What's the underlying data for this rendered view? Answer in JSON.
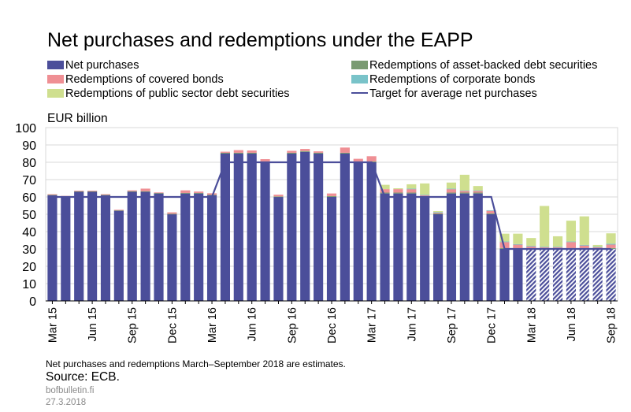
{
  "header": {
    "title": "Net purchases and redemptions under the EAPP",
    "unit_label": "EUR billion"
  },
  "footer": {
    "note": "Net purchases and redemptions March–September 2018 are estimates.",
    "source": "Source: ECB.",
    "site": "bofbulletin.fi",
    "date": "27.3.2018"
  },
  "colors": {
    "net_purchases": "#4b4e9a",
    "covered_bonds": "#ef8f94",
    "abs": "#7a9b72",
    "corporate": "#79c3c9",
    "public_sector": "#cfdf8f",
    "target": "#4b4e9a",
    "grid": "#d9d9d9"
  },
  "chart_data": {
    "type": "bar",
    "stacked": true,
    "ylim": [
      0,
      100
    ],
    "yticks": [
      0,
      10,
      20,
      30,
      40,
      50,
      60,
      70,
      80,
      90,
      100
    ],
    "ylabel": "EUR billion",
    "grid": true,
    "estimate_from_index": 36,
    "categories": [
      "Mar 15",
      "Apr 15",
      "May 15",
      "Jun 15",
      "Jul 15",
      "Aug 15",
      "Sep 15",
      "Oct 15",
      "Nov 15",
      "Dec 15",
      "Jan 16",
      "Feb 16",
      "Mar 16",
      "Apr 16",
      "May 16",
      "Jun 16",
      "Jul 16",
      "Aug 16",
      "Sep 16",
      "Oct 16",
      "Nov 16",
      "Dec 16",
      "Jan 17",
      "Feb 17",
      "Mar 17",
      "Apr 17",
      "May 17",
      "Jun 17",
      "Jul 17",
      "Aug 17",
      "Sep 17",
      "Oct 17",
      "Nov 17",
      "Dec 17",
      "Jan 18",
      "Feb 18",
      "Mar 18",
      "Apr 18",
      "May 18",
      "Jun 18",
      "Jul 18",
      "Aug 18",
      "Sep 18"
    ],
    "xtick_labels": [
      "Mar 15",
      "Jun 15",
      "Sep 15",
      "Dec 15",
      "Mar 16",
      "Jun 16",
      "Sep 16",
      "Dec 16",
      "Mar 17",
      "Jun 17",
      "Sep 17",
      "Dec 17",
      "Mar 18",
      "Jun 18",
      "Sep 18"
    ],
    "series": [
      {
        "name": "Net purchases",
        "key": "net_purchases",
        "values": [
          61,
          60,
          63,
          63,
          61,
          52,
          63,
          63,
          62,
          50,
          62,
          62,
          61,
          85,
          85,
          85,
          80,
          60,
          85,
          86,
          85,
          60,
          85,
          80,
          80,
          62,
          62,
          62,
          60,
          50,
          62,
          62,
          62,
          50,
          30,
          30,
          30,
          30,
          30,
          30,
          30,
          30,
          30
        ]
      },
      {
        "name": "Redemptions of asset-backed debt securities",
        "key": "abs",
        "values": [
          0.3,
          0.3,
          0.3,
          0.3,
          0.3,
          0.3,
          0.3,
          0.3,
          0.3,
          0.3,
          0.3,
          0.3,
          0.3,
          0.5,
          0.5,
          0.5,
          0.5,
          0.3,
          0.5,
          0.5,
          0.5,
          0.5,
          0.5,
          0.5,
          0.5,
          0.5,
          0.5,
          0.5,
          0.5,
          0.5,
          0.5,
          0.5,
          0.5,
          0.5,
          0.5,
          0.5,
          0.5,
          0.5,
          0.5,
          0.5,
          0.5,
          0.5,
          0.5
        ]
      },
      {
        "name": "Redemptions of covered bonds",
        "key": "covered_bonds",
        "values": [
          0.3,
          0.3,
          0.3,
          0.3,
          0.3,
          0.3,
          0.5,
          1.5,
          0.3,
          0.8,
          1.5,
          0.8,
          0.8,
          0.6,
          1.5,
          1.3,
          1.3,
          1.0,
          1.1,
          1.2,
          0.8,
          1.5,
          3.0,
          1.5,
          3.0,
          2.0,
          2.0,
          2.0,
          0.5,
          0.5,
          2.0,
          1.0,
          1.0,
          1.5,
          3.5,
          2.0,
          1.0,
          0.5,
          0.5,
          3.5,
          1.5,
          0.5,
          2.0
        ]
      },
      {
        "name": "Redemptions of corporate bonds",
        "key": "corporate",
        "values": [
          0,
          0,
          0,
          0,
          0,
          0,
          0,
          0,
          0,
          0,
          0,
          0,
          0,
          0,
          0,
          0,
          0,
          0,
          0,
          0,
          0,
          0,
          0,
          0,
          0,
          0,
          0,
          0.3,
          0.3,
          0.3,
          0.3,
          0.3,
          0.3,
          0.3,
          0.3,
          0.3,
          0.3,
          0.3,
          0.3,
          0.3,
          0.3,
          0.3,
          0.5
        ]
      },
      {
        "name": "Redemptions of public sector debt securities",
        "key": "public_sector",
        "values": [
          0,
          0,
          0,
          0,
          0,
          0,
          0,
          0,
          0,
          0,
          0,
          0,
          0,
          0,
          0,
          0,
          0,
          0,
          0,
          0,
          0,
          0,
          0,
          0,
          0,
          2.5,
          0.5,
          2.5,
          6.5,
          0.5,
          3.5,
          9.0,
          2.5,
          0,
          4.5,
          6.0,
          4.5,
          23.5,
          6.0,
          12.0,
          16.5,
          1.0,
          6.0
        ]
      },
      {
        "name": "Target for average net purchases",
        "key": "target",
        "kind": "line",
        "values": [
          60,
          60,
          60,
          60,
          60,
          60,
          60,
          60,
          60,
          60,
          60,
          60,
          60,
          80,
          80,
          80,
          80,
          80,
          80,
          80,
          80,
          80,
          80,
          80,
          80,
          60,
          60,
          60,
          60,
          60,
          60,
          60,
          60,
          60,
          30,
          30,
          30,
          30,
          30,
          30,
          30,
          30,
          30
        ]
      }
    ]
  },
  "legend": {
    "items": [
      {
        "label": "Net purchases",
        "key": "net_purchases",
        "type": "box"
      },
      {
        "label": "Redemptions of asset-backed debt securities",
        "key": "abs",
        "type": "box"
      },
      {
        "label": "Redemptions of covered bonds",
        "key": "covered_bonds",
        "type": "box"
      },
      {
        "label": "Redemptions of corporate bonds",
        "key": "corporate",
        "type": "box"
      },
      {
        "label": "Redemptions of public sector debt securities",
        "key": "public_sector",
        "type": "box"
      },
      {
        "label": "Target for average net purchases",
        "key": "target",
        "type": "line"
      }
    ]
  }
}
